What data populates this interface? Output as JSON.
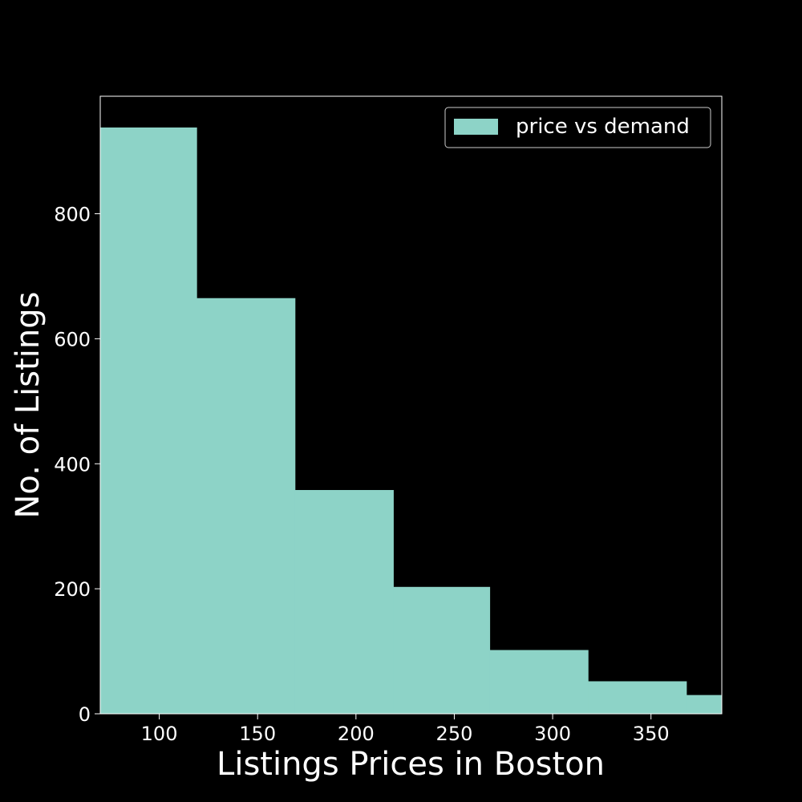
{
  "chart_data": {
    "type": "bar",
    "histogram": true,
    "bins": [
      {
        "x0": 70,
        "x1": 119,
        "count": 938
      },
      {
        "x0": 119,
        "x1": 169,
        "count": 665
      },
      {
        "x0": 169,
        "x1": 219,
        "count": 358
      },
      {
        "x0": 219,
        "x1": 268,
        "count": 203
      },
      {
        "x0": 268,
        "x1": 318,
        "count": 102
      },
      {
        "x0": 318,
        "x1": 368,
        "count": 52
      },
      {
        "x0": 368,
        "x1": 386,
        "count": 30
      }
    ],
    "xlabel": "Listings Prices in Boston",
    "ylabel": "No. of Listings",
    "xlim": [
      70,
      386
    ],
    "ylim": [
      0,
      988
    ],
    "xticks": [
      100,
      150,
      200,
      250,
      300,
      350
    ],
    "yticks": [
      0,
      200,
      400,
      600,
      800
    ],
    "legend": {
      "label": "price vs demand",
      "position": "top-right"
    },
    "grid": false,
    "colors": {
      "bar": "#8dd3c7",
      "background": "#000000",
      "text": "#ffffff",
      "axis": "#ffffff"
    }
  }
}
